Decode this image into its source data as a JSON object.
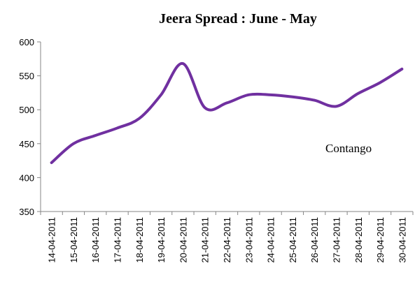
{
  "chart_data": {
    "type": "line",
    "title": "Jeera Spread :  June - May",
    "categories": [
      "14-04-2011",
      "15-04-2011",
      "16-04-2011",
      "17-04-2011",
      "18-04-2011",
      "19-04-2011",
      "20-04-2011",
      "21-04-2011",
      "22-04-2011",
      "23-04-2011",
      "24-04-2011",
      "25-04-2011",
      "26-04-2011",
      "27-04-2011",
      "28-04-2011",
      "29-04-2011",
      "30-04-2011"
    ],
    "values": [
      422,
      450,
      462,
      473,
      487,
      522,
      568,
      503,
      510,
      522,
      522,
      519,
      514,
      505,
      524,
      540,
      560
    ],
    "color": "#7030a0",
    "ylim": [
      350,
      600
    ],
    "yticks": [
      350,
      400,
      450,
      500,
      550,
      600
    ],
    "annotation": "Contango"
  }
}
